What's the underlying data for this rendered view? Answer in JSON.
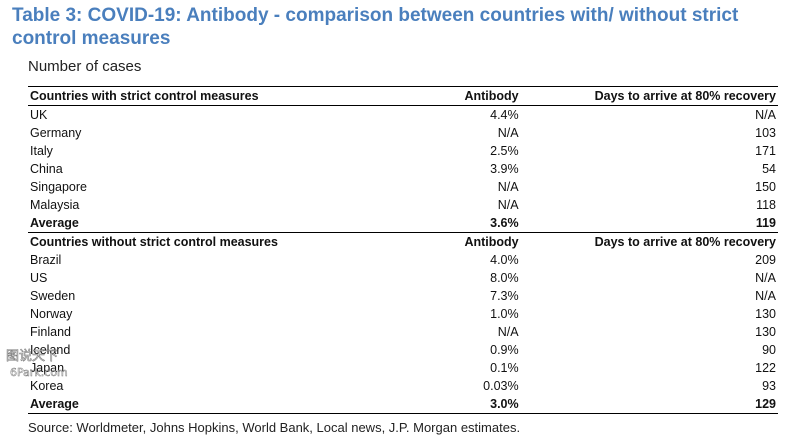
{
  "title": "Table 3: COVID-19: Antibody - comparison between countries with/ without strict control measures",
  "subtitle": "Number of cases",
  "columns": {
    "antibody": "Antibody",
    "days": "Days to arrive at 80% recovery"
  },
  "strict": {
    "header": "Countries with strict control measures",
    "rows": [
      {
        "country": "UK",
        "antibody": "4.4%",
        "days": "N/A"
      },
      {
        "country": "Germany",
        "antibody": "N/A",
        "days": "103"
      },
      {
        "country": "Italy",
        "antibody": "2.5%",
        "days": "171"
      },
      {
        "country": "China",
        "antibody": "3.9%",
        "days": "54"
      },
      {
        "country": "Singapore",
        "antibody": "N/A",
        "days": "150"
      },
      {
        "country": "Malaysia",
        "antibody": "N/A",
        "days": "118"
      }
    ],
    "average": {
      "label": "Average",
      "antibody": "3.6%",
      "days": "119"
    }
  },
  "non_strict": {
    "header": "Countries without strict control measures",
    "rows": [
      {
        "country": "Brazil",
        "antibody": "4.0%",
        "days": "209"
      },
      {
        "country": "US",
        "antibody": "8.0%",
        "days": "N/A"
      },
      {
        "country": "Sweden",
        "antibody": "7.3%",
        "days": "N/A"
      },
      {
        "country": "Norway",
        "antibody": "1.0%",
        "days": "130"
      },
      {
        "country": "Finland",
        "antibody": "N/A",
        "days": "130"
      },
      {
        "country": "Iceland",
        "antibody": "0.9%",
        "days": "90"
      },
      {
        "country": "Japan",
        "antibody": "0.1%",
        "days": "122"
      },
      {
        "country": "Korea",
        "antibody": "0.03%",
        "days": "93"
      }
    ],
    "average": {
      "label": "Average",
      "antibody": "3.0%",
      "days": "129"
    }
  },
  "source": "Source: Worldmeter, Johns Hopkins, World Bank, Local news, J.P. Morgan estimates.",
  "watermark": {
    "text_cn": "图说天下",
    "text": "6Park.com"
  }
}
